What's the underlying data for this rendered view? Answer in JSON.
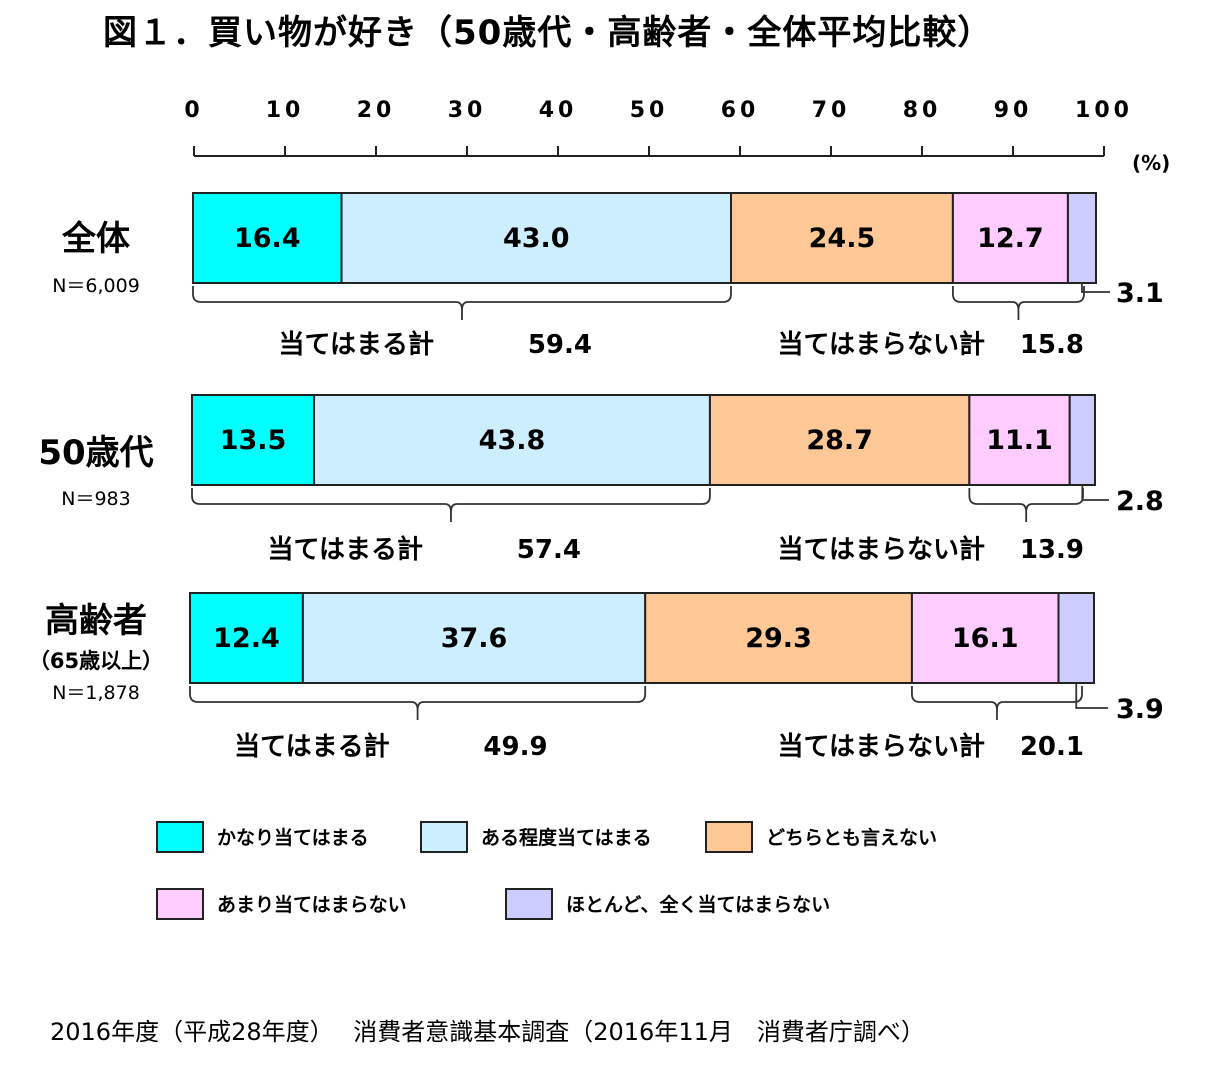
{
  "title": "図１．買い物が好き（50歳代・高齢者・全体平均比較）",
  "unit": "(%)",
  "source": "2016年度（平成28年度）　 消費者意識基本調査（2016年11月　消費者庁調べ）",
  "chart_data": {
    "type": "bar",
    "orientation": "horizontal",
    "stacked": true,
    "xlim": [
      0,
      100
    ],
    "ticks": [
      0,
      10,
      20,
      30,
      40,
      50,
      60,
      70,
      80,
      90,
      100
    ],
    "tick_labels": [
      "0",
      "10",
      "20",
      "30",
      "40",
      "50",
      "60",
      "70",
      "80",
      "90",
      "100"
    ],
    "categories": [
      {
        "name": "全体",
        "subname": "",
        "n_label": "N＝6,009"
      },
      {
        "name": "50歳代",
        "subname": "",
        "n_label": "N＝983"
      },
      {
        "name": "高齢者",
        "subname": "（65歳以上）",
        "n_label": "N＝1,878"
      }
    ],
    "series": [
      {
        "name": "かなり当てはまる",
        "color": "#00ffff",
        "values": [
          16.4,
          13.5,
          12.4
        ]
      },
      {
        "name": "ある程度当てはまる",
        "color": "#cceeff",
        "values": [
          43.0,
          43.8,
          37.6
        ]
      },
      {
        "name": "どちらとも言えない",
        "color": "#fdc896",
        "values": [
          24.5,
          28.7,
          29.3
        ]
      },
      {
        "name": "あまり当てはまらない",
        "color": "#ffccff",
        "values": [
          12.7,
          11.1,
          16.1
        ]
      },
      {
        "name": "ほとんど、全く当てはまらない",
        "color": "#ccccff",
        "values": [
          3.1,
          2.8,
          3.9
        ]
      }
    ],
    "value_labels": [
      [
        "16.4",
        "43.0",
        "24.5",
        "12.7",
        "3.1"
      ],
      [
        "13.5",
        "43.8",
        "28.7",
        "11.1",
        "2.8"
      ],
      [
        "12.4",
        "37.6",
        "29.3",
        "16.1",
        "3.9"
      ]
    ],
    "sum_agree_label": "当てはまる計",
    "sum_agree_values": [
      "59.4",
      "57.4",
      "49.9"
    ],
    "sum_disagree_label": "当てはまらない計",
    "sum_disagree_values": [
      "15.8",
      "13.9",
      "20.1"
    ],
    "legend_placement": "bottom"
  }
}
